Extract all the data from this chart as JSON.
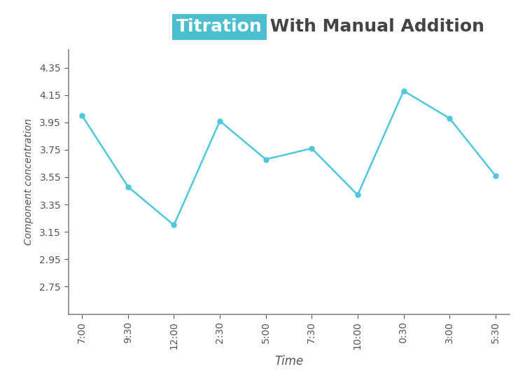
{
  "x_labels": [
    "7:00",
    "9:30",
    "12:00",
    "2:30",
    "5:00",
    "7:30",
    "10:00",
    "0:30",
    "3:00",
    "5:30"
  ],
  "y_values": [
    4.0,
    3.48,
    3.2,
    3.96,
    3.68,
    3.76,
    3.42,
    4.18,
    3.98,
    3.56
  ],
  "line_color": "#4DC8DC",
  "marker_color": "#4DC8DC",
  "title_plain": " With Manual Addition",
  "title_highlight": "Titration",
  "title_highlight_bg": "#4BBFCF",
  "title_highlight_fg": "#ffffff",
  "xlabel": "Time",
  "ylabel": "Component concentration",
  "yticks": [
    2.75,
    2.95,
    3.15,
    3.35,
    3.55,
    3.75,
    3.95,
    4.15,
    4.35
  ],
  "ylim": [
    2.55,
    4.48
  ],
  "background_color": "#ffffff",
  "axis_color": "#888888",
  "tick_label_color": "#555555",
  "title_text_color": "#444444",
  "xlabel_fontsize": 12,
  "ylabel_fontsize": 10,
  "title_fontsize": 18,
  "tick_fontsize": 10,
  "line_width": 1.8,
  "marker_size": 5
}
